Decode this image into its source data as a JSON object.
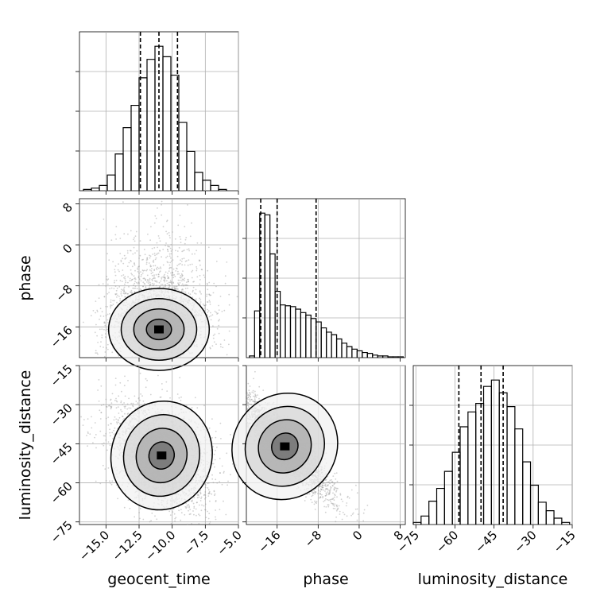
{
  "chart_data": {
    "type": "corner",
    "parameters": [
      "geocent_time",
      "phase",
      "luminosity_distance"
    ],
    "axis_labels": {
      "x": [
        "geocent_time",
        "phase",
        "luminosity_distance"
      ],
      "y": [
        "phase",
        "luminosity_distance"
      ]
    },
    "ranges": {
      "geocent_time": [
        -17,
        -5
      ],
      "phase": [
        -22,
        9
      ],
      "luminosity_distance": [
        -76,
        -15
      ]
    },
    "ticks": {
      "geocent_time": [
        -15.0,
        -12.5,
        -10.0,
        -7.5,
        -5.0
      ],
      "phase": [
        -16,
        -8,
        0,
        8
      ],
      "luminosity_distance": [
        -75,
        -60,
        -45,
        -30,
        -15
      ]
    },
    "tick_labels": {
      "geocent_time": [
        "−15.0",
        "−12.5",
        "−10.0",
        "−7.5",
        "−5.0"
      ],
      "phase": [
        "−16",
        "−8",
        "0",
        "8"
      ],
      "luminosity_distance": [
        "−75",
        "−60",
        "−45",
        "−30",
        "−15"
      ]
    },
    "quantiles": {
      "geocent_time": [
        -12.4,
        -11.0,
        -9.6
      ],
      "phase": [
        -19.2,
        -16.0,
        -8.4
      ],
      "luminosity_distance": [
        -58.5,
        -50.0,
        -41.5
      ]
    },
    "histograms": {
      "geocent_time": {
        "bin_edges": [
          -16.7,
          -16.1,
          -15.5,
          -14.9,
          -14.3,
          -13.7,
          -13.1,
          -12.5,
          -11.9,
          -11.3,
          -10.7,
          -10.1,
          -9.5,
          -8.9,
          -8.3,
          -7.7,
          -7.1,
          -6.5,
          -5.9
        ],
        "counts": [
          1,
          2,
          4,
          12,
          28,
          48,
          65,
          86,
          100,
          110,
          102,
          88,
          52,
          30,
          14,
          8,
          4,
          1
        ]
      },
      "phase": {
        "bin_edges": [
          -21.4,
          -20.4,
          -19.4,
          -18.4,
          -17.4,
          -16.4,
          -15.4,
          -14.4,
          -13.4,
          -12.4,
          -11.4,
          -10.4,
          -9.4,
          -8.4,
          -7.4,
          -6.4,
          -5.4,
          -4.4,
          -3.4,
          -2.4,
          -1.4,
          -0.4,
          0.6,
          1.6,
          2.6,
          3.6,
          4.6,
          5.6,
          6.6,
          7.6,
          8.6
        ],
        "counts": [
          2,
          55,
          170,
          168,
          122,
          78,
          62,
          61,
          60,
          57,
          53,
          50,
          46,
          42,
          35,
          30,
          27,
          22,
          17,
          13,
          10,
          8,
          6,
          5,
          3,
          2,
          2,
          1,
          1,
          1
        ]
      },
      "luminosity_distance": {
        "bin_edges": [
          -76,
          -73,
          -70,
          -67,
          -64,
          -61,
          -58,
          -55,
          -52,
          -49,
          -46,
          -43,
          -40,
          -37,
          -34,
          -31,
          -28,
          -25,
          -22,
          -19,
          -16
        ],
        "counts": [
          2,
          8,
          22,
          34,
          50,
          68,
          92,
          106,
          114,
          130,
          136,
          124,
          111,
          90,
          59,
          37,
          21,
          13,
          6,
          2
        ]
      }
    },
    "density_2d": {
      "geocent_time_vs_phase": {
        "center": [
          -11.0,
          -16.5
        ],
        "sigma": [
          1.9,
          4.0
        ],
        "skew_direction": "upper (phase > 0 tail)",
        "contour_levels": [
          "0.5",
          "1.0",
          "1.5",
          "2.0 sigma"
        ]
      },
      "geocent_time_vs_luminosity_distance": {
        "center": [
          -10.8,
          -49.5
        ],
        "sigma": [
          1.9,
          10.5
        ],
        "correlation": -0.35,
        "contour_levels": [
          "0.5",
          "1.0",
          "1.5",
          "2.0 sigma"
        ]
      },
      "phase_vs_luminosity_distance": {
        "center": [
          -14.5,
          -46.0
        ],
        "sigma": [
          5.0,
          10.5
        ],
        "correlation": -0.9,
        "contour_levels": [
          "0.5",
          "1.0",
          "1.5",
          "2.0 sigma"
        ]
      }
    },
    "grid": true,
    "scatter_color": "#9a9a9a",
    "line_color": "#000000"
  }
}
